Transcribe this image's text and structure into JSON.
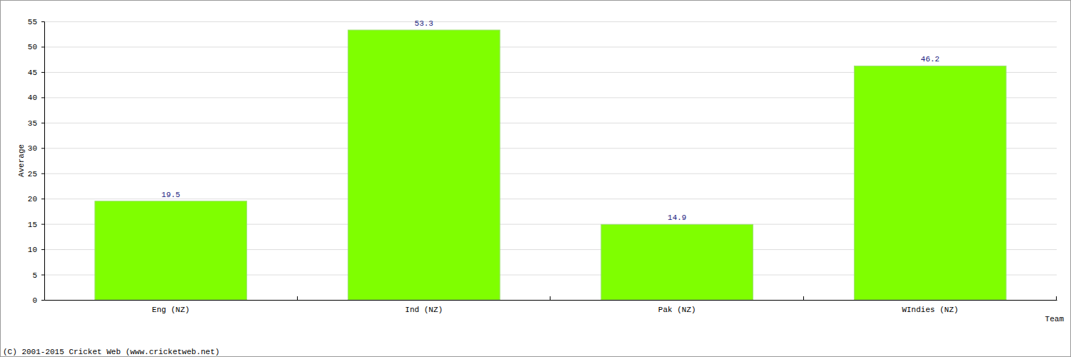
{
  "chart_data": {
    "type": "bar",
    "categories": [
      "Eng (NZ)",
      "Ind (NZ)",
      "Pak (NZ)",
      "WIndies (NZ)"
    ],
    "values": [
      19.5,
      53.3,
      14.9,
      46.2
    ],
    "color": "#7fff00",
    "x_label": "Team",
    "y_label": "Average",
    "annotations": [
      "(C) 2001-2015 Cricket Web (www.cricketweb.net)"
    ],
    "ylim": [
      0,
      55
    ],
    "yticks": [
      0,
      5,
      10,
      15,
      20,
      25,
      30,
      35,
      40,
      45,
      50,
      55
    ],
    "grid": true,
    "data_labels": true
  }
}
